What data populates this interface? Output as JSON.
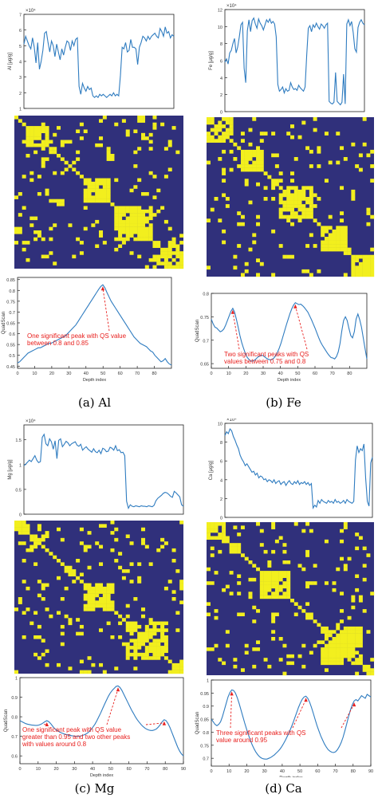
{
  "chart_data": [
    {
      "panel": "a",
      "caption": "(a) Al",
      "line_top": {
        "type": "line",
        "ylabel": "Al [μg/g]",
        "exponent": "×10⁴",
        "xlim": [
          0,
          88
        ],
        "ylim": [
          1,
          7
        ],
        "yticks": [
          1,
          2,
          3,
          4,
          5,
          6,
          7
        ],
        "y": [
          5.1,
          5.6,
          5.3,
          5.0,
          4.8,
          5.5,
          4.9,
          3.9,
          5.2,
          3.5,
          4.0,
          4.7,
          5.8,
          5.9,
          5.2,
          4.6,
          5.3,
          5.0,
          4.3,
          5.1,
          4.6,
          4.1,
          4.8,
          4.4,
          4.9,
          5.3,
          5.2,
          4.7,
          5.3,
          5.0,
          5.4,
          5.5,
          2.4,
          1.9,
          2.6,
          2.3,
          2.1,
          2.4,
          2.2,
          2.3,
          1.8,
          1.7,
          1.8,
          1.7,
          1.9,
          1.8,
          1.9,
          1.8,
          1.7,
          1.8,
          1.9,
          1.8,
          2.0,
          1.8,
          1.9,
          1.8,
          3.1,
          4.9,
          4.8,
          5.2,
          4.6,
          4.7,
          5.4,
          4.9,
          4.9,
          4.8,
          3.8,
          4.9,
          5.2,
          5.6,
          5.5,
          5.3,
          5.6,
          5.4,
          5.6,
          5.7,
          5.8,
          5.6,
          5.5,
          6.1,
          5.9,
          5.6,
          6.2,
          5.8,
          5.9,
          5.5,
          5.7,
          5.6
        ]
      },
      "heatmap": {
        "type": "heatmap",
        "blocks": [
          [
            0.05,
            0.2
          ],
          [
            0.4,
            0.55
          ],
          [
            0.57,
            0.8
          ],
          [
            0.8,
            1.0
          ]
        ],
        "seed": 11
      },
      "line_bottom": {
        "type": "line",
        "ylabel": "QuadScan",
        "xlabel": "Depth index",
        "xlim": [
          0,
          90
        ],
        "xticks": [
          0,
          10,
          20,
          30,
          40,
          50,
          60,
          70,
          80
        ],
        "ylim": [
          0.44,
          0.86
        ],
        "yticks": [
          0.45,
          0.5,
          0.55,
          0.6,
          0.65,
          0.7,
          0.75,
          0.8,
          0.85
        ],
        "y": [
          0.465,
          0.47,
          0.48,
          0.49,
          0.5,
          0.51,
          0.515,
          0.52,
          0.525,
          0.53,
          0.535,
          0.535,
          0.54,
          0.545,
          0.55,
          0.555,
          0.555,
          0.56,
          0.565,
          0.57,
          0.575,
          0.58,
          0.585,
          0.59,
          0.6,
          0.61,
          0.62,
          0.63,
          0.64,
          0.655,
          0.67,
          0.685,
          0.7,
          0.715,
          0.73,
          0.745,
          0.76,
          0.775,
          0.79,
          0.805,
          0.818,
          0.826,
          0.812,
          0.79,
          0.77,
          0.75,
          0.735,
          0.72,
          0.705,
          0.69,
          0.675,
          0.66,
          0.645,
          0.63,
          0.615,
          0.6,
          0.585,
          0.575,
          0.565,
          0.555,
          0.55,
          0.545,
          0.54,
          0.53,
          0.52,
          0.515,
          0.5,
          0.49,
          0.48,
          0.47,
          0.475,
          0.485,
          0.47,
          0.46,
          0.455
        ],
        "peaks": [
          41
        ],
        "annotation": "One significant peak with QS value between 0.8 and 0.85"
      }
    },
    {
      "panel": "b",
      "caption": "(b) Fe",
      "line_top": {
        "type": "line",
        "ylabel": "Fe [μg/g]",
        "exponent": "×10⁴",
        "xlim": [
          0,
          88
        ],
        "ylim": [
          0,
          12
        ],
        "yticks": [
          0,
          2,
          4,
          6,
          8,
          10,
          12
        ],
        "y": [
          5.8,
          6.2,
          5.6,
          6.9,
          7.2,
          8.0,
          8.6,
          6.9,
          7.6,
          8.8,
          10.2,
          10.5,
          5.1,
          3.4,
          9.5,
          10.8,
          9.4,
          10.7,
          11.0,
          10.3,
          9.8,
          10.9,
          10.4,
          10.1,
          9.6,
          10.2,
          10.8,
          10.5,
          10.9,
          10.4,
          10.6,
          10.3,
          8.8,
          3.2,
          2.4,
          2.6,
          2.9,
          2.2,
          2.7,
          2.4,
          2.5,
          3.4,
          2.9,
          2.6,
          2.7,
          2.5,
          3.1,
          2.8,
          2.6,
          2.4,
          2.9,
          6.6,
          9.8,
          10.1,
          9.4,
          10.2,
          9.9,
          10.4,
          10.0,
          9.7,
          10.3,
          10.1,
          9.8,
          10.2,
          10.4,
          1.2,
          1.0,
          0.9,
          1.1,
          4.6,
          1.2,
          1.0,
          0.8,
          1.1,
          4.4,
          0.9,
          10.3,
          10.8,
          10.1,
          10.6,
          9.3,
          7.4,
          7.0,
          9.9,
          10.5,
          10.8,
          10.4,
          10.2
        ]
      },
      "heatmap": {
        "type": "heatmap",
        "blocks": [
          [
            0.0,
            0.14
          ],
          [
            0.2,
            0.32
          ],
          [
            0.42,
            0.62
          ],
          [
            0.66,
            0.82
          ],
          [
            0.86,
            1.0
          ]
        ],
        "seed": 23
      },
      "line_bottom": {
        "type": "line",
        "ylabel": "QuadScan",
        "xlabel": "Depth index",
        "xlim": [
          0,
          90
        ],
        "xticks": [
          0,
          10,
          20,
          30,
          40,
          50,
          60,
          70,
          80
        ],
        "ylim": [
          0.64,
          0.8
        ],
        "yticks": [
          0.65,
          0.7,
          0.75,
          0.8
        ],
        "y": [
          0.745,
          0.735,
          0.728,
          0.726,
          0.722,
          0.718,
          0.72,
          0.724,
          0.732,
          0.742,
          0.752,
          0.762,
          0.768,
          0.76,
          0.745,
          0.728,
          0.71,
          0.695,
          0.683,
          0.672,
          0.664,
          0.659,
          0.656,
          0.655,
          0.657,
          0.66,
          0.664,
          0.666,
          0.668,
          0.667,
          0.664,
          0.661,
          0.659,
          0.658,
          0.659,
          0.662,
          0.667,
          0.674,
          0.683,
          0.694,
          0.707,
          0.72,
          0.733,
          0.745,
          0.757,
          0.767,
          0.775,
          0.78,
          0.778,
          0.776,
          0.777,
          0.774,
          0.77,
          0.765,
          0.76,
          0.752,
          0.744,
          0.735,
          0.726,
          0.716,
          0.706,
          0.697,
          0.69,
          0.684,
          0.678,
          0.672,
          0.667,
          0.663,
          0.662,
          0.66,
          0.665,
          0.675,
          0.693,
          0.72,
          0.742,
          0.75,
          0.742,
          0.725,
          0.71,
          0.705,
          0.718,
          0.745,
          0.756,
          0.744,
          0.728,
          0.705,
          0.682,
          0.66
        ],
        "peaks": [
          12,
          47
        ],
        "annotation": "Two significant peaks with QS values between 0.75 and 0.8"
      }
    },
    {
      "panel": "c",
      "caption": "(c) Mg",
      "line_top": {
        "type": "line",
        "ylabel": "Mg [μg/g]",
        "exponent": "×10⁴",
        "xlim": [
          0,
          90
        ],
        "ylim": [
          0,
          1.8
        ],
        "yticks": [
          0,
          0.5,
          1,
          1.5
        ],
        "y": [
          0.98,
          1.01,
          1.05,
          1.09,
          1.06,
          1.12,
          1.18,
          1.09,
          1.04,
          1.06,
          1.55,
          1.61,
          1.42,
          1.38,
          1.52,
          1.46,
          1.31,
          1.48,
          1.12,
          1.49,
          1.52,
          1.36,
          1.41,
          1.47,
          1.44,
          1.38,
          1.42,
          1.44,
          1.46,
          1.39,
          1.37,
          1.41,
          1.29,
          1.33,
          1.36,
          1.31,
          1.28,
          1.25,
          1.32,
          1.26,
          1.24,
          1.29,
          1.22,
          1.33,
          1.31,
          1.26,
          1.27,
          1.35,
          1.33,
          1.29,
          1.38,
          1.28,
          1.3,
          1.24,
          1.25,
          1.18,
          0.26,
          0.12,
          0.19,
          0.16,
          0.15,
          0.17,
          0.16,
          0.15,
          0.17,
          0.16,
          0.16,
          0.15,
          0.17,
          0.16,
          0.15,
          0.18,
          0.27,
          0.32,
          0.35,
          0.38,
          0.42,
          0.44,
          0.43,
          0.4,
          0.36,
          0.34,
          0.46,
          0.43,
          0.39,
          0.35,
          0.19,
          0.16
        ]
      },
      "heatmap": {
        "type": "heatmap",
        "blocks": [
          [
            0.0,
            0.08
          ],
          [
            0.08,
            0.18
          ],
          [
            0.28,
            0.36
          ],
          [
            0.4,
            0.58
          ],
          [
            0.64,
            0.9
          ],
          [
            0.92,
            1.0
          ]
        ],
        "seed": 37
      },
      "line_bottom": {
        "type": "line",
        "ylabel": "QuadScan",
        "xlabel": "Depth index",
        "xlim": [
          0,
          90
        ],
        "xticks": [
          0,
          10,
          20,
          30,
          40,
          50,
          60,
          70,
          80,
          90
        ],
        "ylim": [
          0.56,
          1.0
        ],
        "yticks": [
          0.6,
          0.7,
          0.8,
          0.9,
          1
        ],
        "y": [
          0.78,
          0.775,
          0.77,
          0.765,
          0.762,
          0.76,
          0.758,
          0.757,
          0.756,
          0.756,
          0.758,
          0.762,
          0.768,
          0.775,
          0.78,
          0.775,
          0.765,
          0.752,
          0.74,
          0.732,
          0.726,
          0.72,
          0.716,
          0.712,
          0.709,
          0.707,
          0.705,
          0.703,
          0.702,
          0.7,
          0.7,
          0.701,
          0.703,
          0.706,
          0.71,
          0.716,
          0.724,
          0.735,
          0.748,
          0.762,
          0.78,
          0.8,
          0.82,
          0.842,
          0.864,
          0.885,
          0.905,
          0.922,
          0.935,
          0.945,
          0.955,
          0.958,
          0.95,
          0.935,
          0.915,
          0.895,
          0.875,
          0.855,
          0.835,
          0.818,
          0.8,
          0.785,
          0.772,
          0.76,
          0.75,
          0.742,
          0.736,
          0.732,
          0.73,
          0.73,
          0.733,
          0.738,
          0.748,
          0.76,
          0.775,
          0.785,
          0.78,
          0.765,
          0.745,
          0.72,
          0.695,
          0.67,
          0.645,
          0.625,
          0.61,
          0.6
        ],
        "peaks": [
          14,
          51,
          75
        ],
        "annotation": "One significant peak with QS value greater than 0.95 and two other peaks with values around 0.8"
      }
    },
    {
      "panel": "d",
      "caption": "(d) Ca",
      "line_top": {
        "type": "line",
        "ylabel": "Ca [μg/g]",
        "exponent": "×10⁴",
        "xlim": [
          0,
          90
        ],
        "ylim": [
          0,
          10
        ],
        "yticks": [
          0,
          2,
          4,
          6,
          8,
          10
        ],
        "y": [
          8.7,
          9.1,
          8.9,
          9.4,
          9.2,
          8.6,
          8.2,
          7.7,
          7.3,
          6.6,
          6.2,
          5.9,
          5.5,
          5.7,
          5.4,
          5.1,
          4.8,
          4.9,
          4.5,
          4.7,
          4.2,
          4.4,
          4.3,
          4.0,
          4.1,
          3.8,
          4.0,
          3.9,
          3.7,
          4.0,
          3.6,
          3.8,
          3.9,
          3.5,
          3.7,
          3.8,
          3.4,
          3.7,
          3.9,
          3.6,
          3.5,
          3.8,
          3.6,
          3.9,
          3.5,
          3.7,
          3.6,
          3.8,
          3.5,
          3.7,
          3.4,
          3.6,
          1.0,
          1.3,
          1.1,
          1.8,
          1.5,
          1.9,
          1.7,
          1.6,
          1.5,
          1.8,
          1.6,
          1.7,
          1.5,
          1.9,
          1.6,
          1.7,
          1.5,
          1.6,
          1.8,
          1.5,
          1.9,
          1.7,
          1.6,
          1.5,
          1.7,
          6.1,
          7.6,
          6.9,
          7.3,
          7.1,
          7.8,
          4.2,
          1.7,
          1.2,
          5.8,
          6.4
        ]
      },
      "heatmap": {
        "type": "heatmap",
        "blocks": [
          [
            0.0,
            0.1
          ],
          [
            0.12,
            0.2
          ],
          [
            0.3,
            0.5
          ],
          [
            0.58,
            0.62
          ],
          [
            0.66,
            0.92
          ],
          [
            0.94,
            1.0
          ]
        ],
        "seed": 53
      },
      "line_bottom": {
        "type": "line",
        "ylabel": "QuadScan",
        "xlabel": "Depth index",
        "xlim": [
          0,
          90
        ],
        "xticks": [
          0,
          10,
          20,
          30,
          40,
          50,
          60,
          70,
          80,
          90
        ],
        "ylim": [
          0.67,
          1.0
        ],
        "yticks": [
          0.7,
          0.75,
          0.8,
          0.85,
          0.9,
          0.95,
          1
        ],
        "y": [
          0.85,
          0.84,
          0.83,
          0.825,
          0.83,
          0.84,
          0.86,
          0.885,
          0.91,
          0.935,
          0.952,
          0.962,
          0.96,
          0.95,
          0.932,
          0.91,
          0.885,
          0.86,
          0.835,
          0.812,
          0.79,
          0.77,
          0.752,
          0.737,
          0.724,
          0.714,
          0.706,
          0.701,
          0.698,
          0.697,
          0.697,
          0.7,
          0.703,
          0.708,
          0.713,
          0.72,
          0.727,
          0.735,
          0.745,
          0.757,
          0.77,
          0.785,
          0.8,
          0.817,
          0.835,
          0.855,
          0.875,
          0.895,
          0.912,
          0.926,
          0.935,
          0.938,
          0.93,
          0.915,
          0.895,
          0.872,
          0.848,
          0.825,
          0.805,
          0.786,
          0.77,
          0.755,
          0.743,
          0.733,
          0.727,
          0.723,
          0.722,
          0.725,
          0.733,
          0.745,
          0.76,
          0.78,
          0.805,
          0.832,
          0.86,
          0.885,
          0.905,
          0.92,
          0.925,
          0.92,
          0.93,
          0.94,
          0.935,
          0.93,
          0.945,
          0.94,
          0.935
        ],
        "peaks": [
          11,
          51,
          77
        ],
        "annotation": "Three significant peaks with QS value around 0.95"
      }
    }
  ],
  "colors": {
    "line": "#2f7cc0",
    "heat_low": "#30307b",
    "heat_high": "#f2ef1e",
    "annotation": "#e8201e",
    "axis": "#222222"
  }
}
